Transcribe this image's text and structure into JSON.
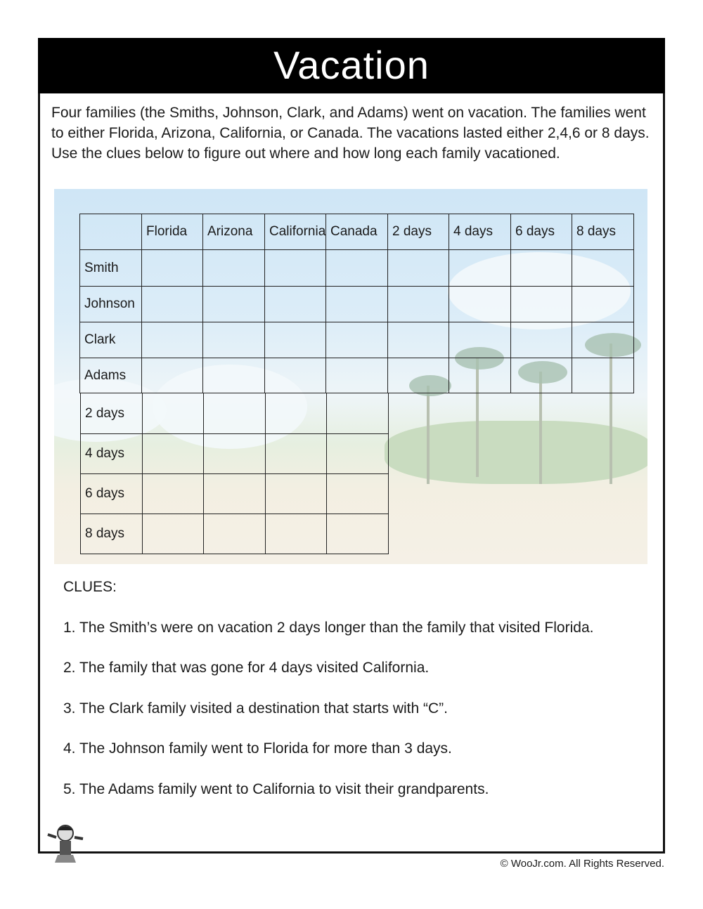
{
  "title": "Vacation",
  "intro": "Four families (the Smiths, Johnson, Clark, and Adams) went on vacation.  The families went to either Florida, Arizona, California, or Canada.  The vacations lasted either 2,4,6 or 8 days.  Use the clues below to figure out where and how long each family vacationed.",
  "grid": {
    "column_headers": [
      "Florida",
      "Arizona",
      "California",
      "Canada",
      "2 days",
      "4 days",
      "6 days",
      "8 days"
    ],
    "family_rows": [
      "Smith",
      "Johnson",
      "Clark",
      "Adams"
    ],
    "duration_rows": [
      "2 days",
      "4 days",
      "6 days",
      "8 days"
    ]
  },
  "clues_heading": "CLUES:",
  "clues": [
    "1.  The Smith’s were on vacation 2 days longer than the family that visited Florida.",
    "2. The family that was gone for 4 days visited California.",
    "3.  The Clark family visited a destination that starts with “C”.",
    "4.  The Johnson family went to Florida for more than 3 days.",
    "5.  The Adams family went to California to visit their grandparents."
  ],
  "footer": "© WooJr.com. All Rights Reserved."
}
